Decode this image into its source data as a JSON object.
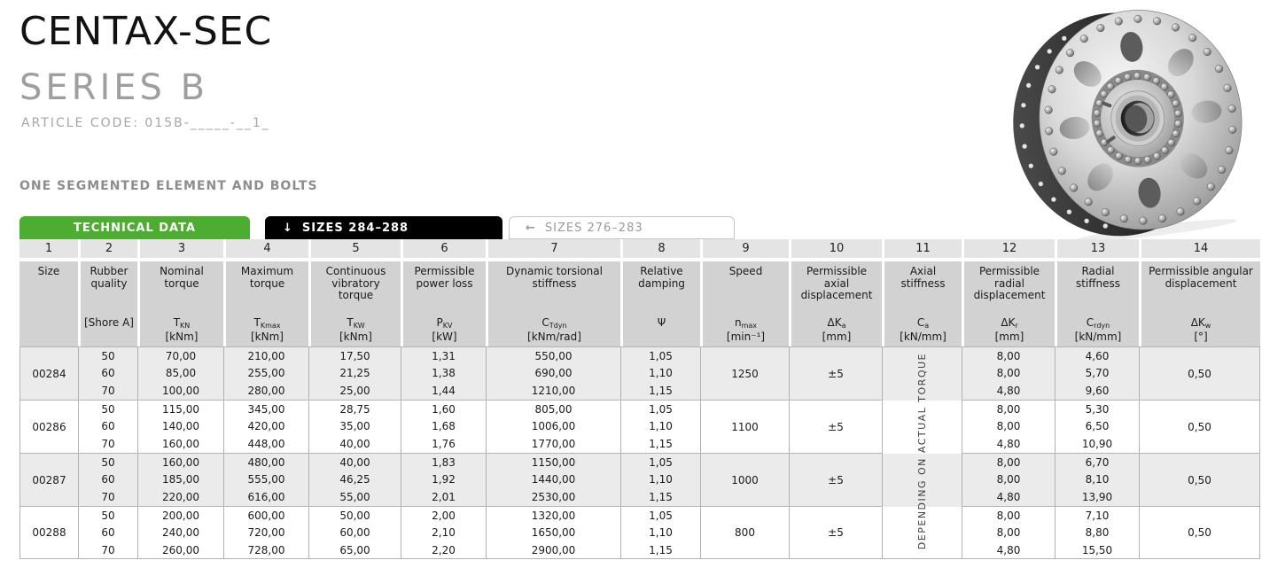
{
  "header": {
    "title": "CENTAX-SEC",
    "series": "SERIES B",
    "article_code": "ARTICLE CODE: 015B-_____-__1_",
    "section_label": "ONE SEGMENTED ELEMENT AND BOLTS"
  },
  "tabs": [
    {
      "label": "TECHNICAL DATA",
      "arrow": ""
    },
    {
      "label": "SIZES 284–288",
      "arrow": "↓"
    },
    {
      "label": "SIZES 276–283",
      "arrow": "←"
    }
  ],
  "colors": {
    "accent_green": "#4cad30",
    "tab_black": "#000000",
    "tab_inactive_text": "#9a9a9a",
    "header_cell": "#d2d2d2",
    "number_cell": "#e4e4e4",
    "row_shade": "#ebebeb",
    "table_border": "#b3b3b3",
    "title_gray": "#9e9e9e",
    "section_gray": "#8d8d8d"
  },
  "table": {
    "column_numbers": [
      "1",
      "2",
      "3",
      "4",
      "5",
      "6",
      "7",
      "8",
      "9",
      "10",
      "11",
      "12",
      "13",
      "14"
    ],
    "columns": [
      {
        "name": "Size",
        "sym": "",
        "sub": "",
        "unit": ""
      },
      {
        "name": "Rubber quality",
        "sym": "[Shore A]",
        "sub": "",
        "unit": ""
      },
      {
        "name": "Nominal torque",
        "sym": "T",
        "sub": "KN",
        "unit": "[kNm]"
      },
      {
        "name": "Maximum torque",
        "sym": "T",
        "sub": "Kmax",
        "unit": "[kNm]"
      },
      {
        "name": "Continuous vibratory torque",
        "sym": "T",
        "sub": "KW",
        "unit": "[kNm]"
      },
      {
        "name": "Permissible power loss",
        "sym": "P",
        "sub": "KV",
        "unit": "[kW]"
      },
      {
        "name": "Dynamic torsional stiffness",
        "sym": "C",
        "sub": "Tdyn",
        "unit": "[kNm/rad]"
      },
      {
        "name": "Relative damping",
        "sym": "Ψ",
        "sub": "",
        "unit": ""
      },
      {
        "name": "Speed",
        "sym": "n",
        "sub": "max",
        "unit": "[min⁻¹]"
      },
      {
        "name": "Permissible axial displacement",
        "sym": "ΔK",
        "sub": "a",
        "unit": "[mm]"
      },
      {
        "name": "Axial stiffness",
        "sym": "C",
        "sub": "a",
        "unit": "[kN/mm]"
      },
      {
        "name": "Permissible radial displacement",
        "sym": "ΔK",
        "sub": "r",
        "unit": "[mm]"
      },
      {
        "name": "Radial stiffness",
        "sym": "C",
        "sub": "rdyn",
        "unit": "[kN/mm]"
      },
      {
        "name": "Permissible angular displacement",
        "sym": "ΔK",
        "sub": "w",
        "unit": "[°]"
      }
    ],
    "vertical_note": "DEPENDING ON ACTUAL TORQUE",
    "groups": [
      {
        "size": "00284",
        "shaded": true,
        "speed": "1250",
        "axial_displacement": "±5",
        "angular_displacement": "0,50",
        "rows": [
          {
            "shore": "50",
            "nominal": "70,00",
            "max": "210,00",
            "vibratory": "17,50",
            "power_loss": "1,31",
            "torsional_stiffness": "550,00",
            "damping": "1,05",
            "radial_displacement": "8,00",
            "radial_stiffness": "4,60"
          },
          {
            "shore": "60",
            "nominal": "85,00",
            "max": "255,00",
            "vibratory": "21,25",
            "power_loss": "1,38",
            "torsional_stiffness": "690,00",
            "damping": "1,10",
            "radial_displacement": "8,00",
            "radial_stiffness": "5,70"
          },
          {
            "shore": "70",
            "nominal": "100,00",
            "max": "280,00",
            "vibratory": "25,00",
            "power_loss": "1,44",
            "torsional_stiffness": "1210,00",
            "damping": "1,15",
            "radial_displacement": "4,80",
            "radial_stiffness": "9,60"
          }
        ]
      },
      {
        "size": "00286",
        "shaded": false,
        "speed": "1100",
        "axial_displacement": "±5",
        "angular_displacement": "0,50",
        "rows": [
          {
            "shore": "50",
            "nominal": "115,00",
            "max": "345,00",
            "vibratory": "28,75",
            "power_loss": "1,60",
            "torsional_stiffness": "805,00",
            "damping": "1,05",
            "radial_displacement": "8,00",
            "radial_stiffness": "5,30"
          },
          {
            "shore": "60",
            "nominal": "140,00",
            "max": "420,00",
            "vibratory": "35,00",
            "power_loss": "1,68",
            "torsional_stiffness": "1006,00",
            "damping": "1,10",
            "radial_displacement": "8,00",
            "radial_stiffness": "6,50"
          },
          {
            "shore": "70",
            "nominal": "160,00",
            "max": "448,00",
            "vibratory": "40,00",
            "power_loss": "1,76",
            "torsional_stiffness": "1770,00",
            "damping": "1,15",
            "radial_displacement": "4,80",
            "radial_stiffness": "10,90"
          }
        ]
      },
      {
        "size": "00287",
        "shaded": true,
        "speed": "1000",
        "axial_displacement": "±5",
        "angular_displacement": "0,50",
        "rows": [
          {
            "shore": "50",
            "nominal": "160,00",
            "max": "480,00",
            "vibratory": "40,00",
            "power_loss": "1,83",
            "torsional_stiffness": "1150,00",
            "damping": "1,05",
            "radial_displacement": "8,00",
            "radial_stiffness": "6,70"
          },
          {
            "shore": "60",
            "nominal": "185,00",
            "max": "555,00",
            "vibratory": "46,25",
            "power_loss": "1,92",
            "torsional_stiffness": "1440,00",
            "damping": "1,10",
            "radial_displacement": "8,00",
            "radial_stiffness": "8,10"
          },
          {
            "shore": "70",
            "nominal": "220,00",
            "max": "616,00",
            "vibratory": "55,00",
            "power_loss": "2,01",
            "torsional_stiffness": "2530,00",
            "damping": "1,15",
            "radial_displacement": "4,80",
            "radial_stiffness": "13,90"
          }
        ]
      },
      {
        "size": "00288",
        "shaded": false,
        "speed": "800",
        "axial_displacement": "±5",
        "angular_displacement": "0,50",
        "rows": [
          {
            "shore": "50",
            "nominal": "200,00",
            "max": "600,00",
            "vibratory": "50,00",
            "power_loss": "2,00",
            "torsional_stiffness": "1320,00",
            "damping": "1,05",
            "radial_displacement": "8,00",
            "radial_stiffness": "7,10"
          },
          {
            "shore": "60",
            "nominal": "240,00",
            "max": "720,00",
            "vibratory": "60,00",
            "power_loss": "2,10",
            "torsional_stiffness": "1650,00",
            "damping": "1,10",
            "radial_displacement": "8,00",
            "radial_stiffness": "8,80"
          },
          {
            "shore": "70",
            "nominal": "260,00",
            "max": "728,00",
            "vibratory": "65,00",
            "power_loss": "2,20",
            "torsional_stiffness": "2900,00",
            "damping": "1,15",
            "radial_displacement": "4,80",
            "radial_stiffness": "15,50"
          }
        ]
      }
    ]
  }
}
